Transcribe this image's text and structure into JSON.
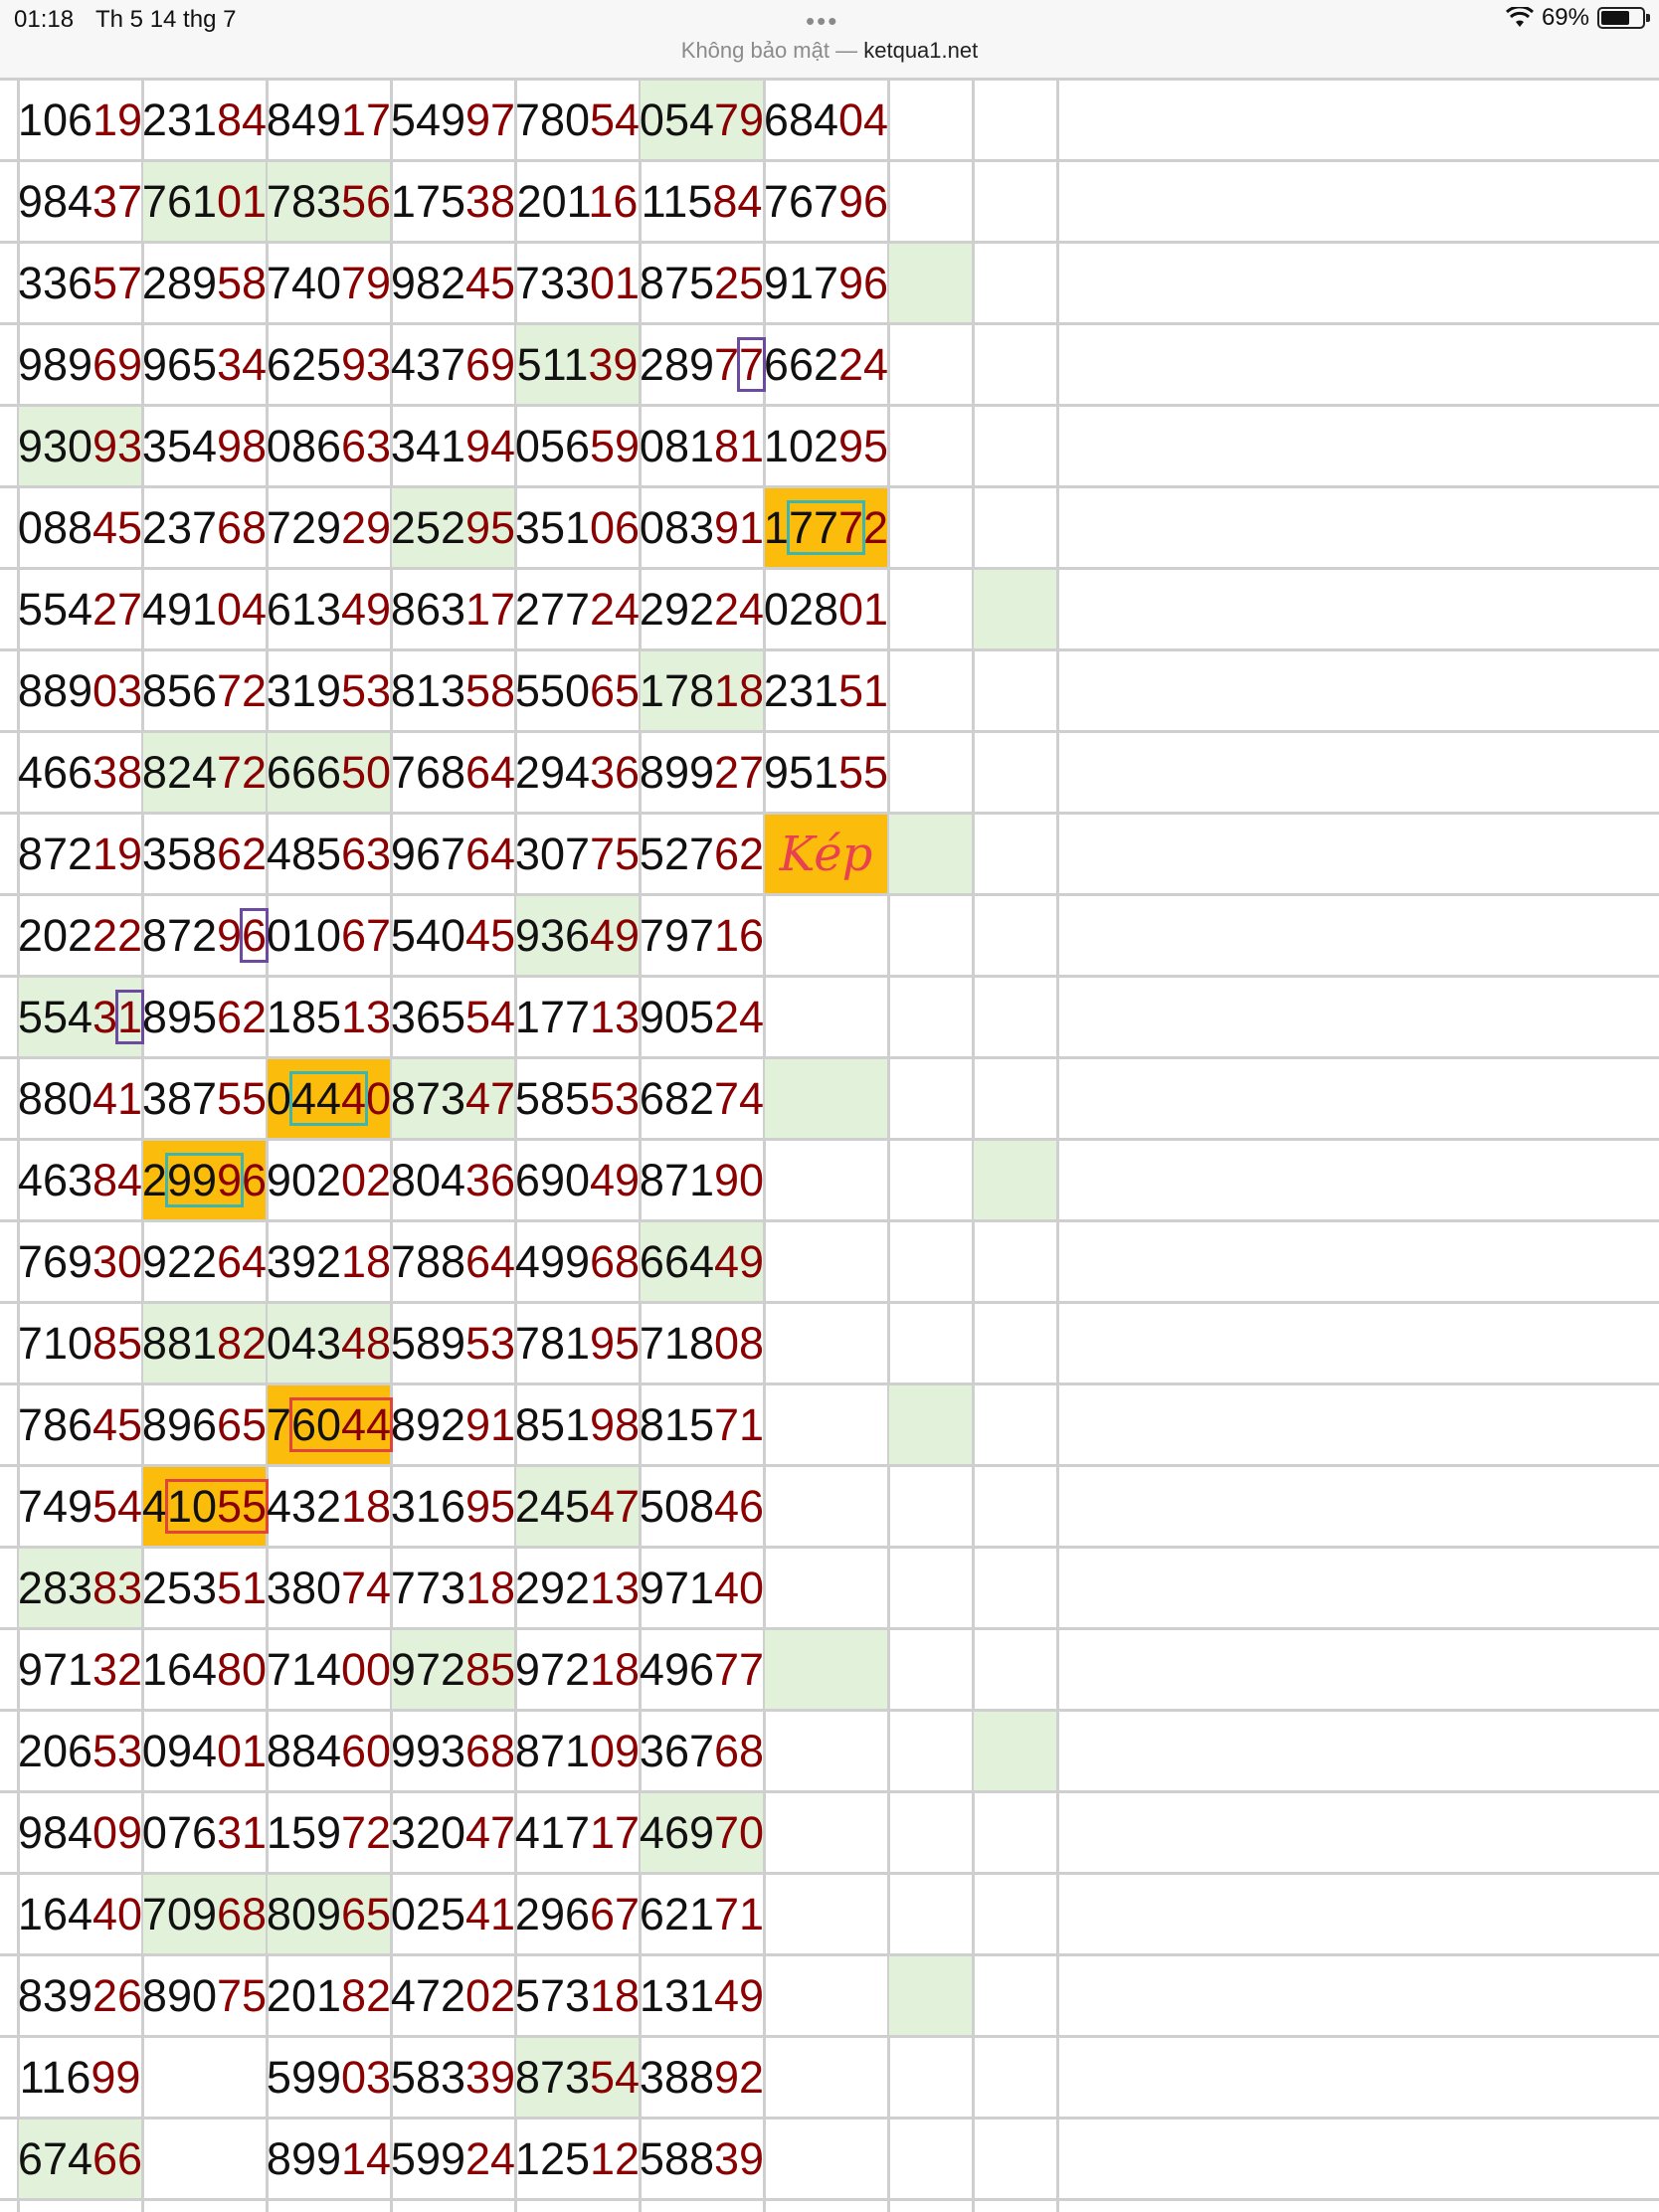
{
  "status": {
    "time": "01:18",
    "date": "Th 5 14 thg 7",
    "battery": "69%",
    "url_insecure": "Không bảo mật —",
    "url_domain": "ketqua1.net",
    "icons": [
      "wifi-icon",
      "battery-icon"
    ]
  },
  "colors": {
    "green_highlight": "#e2f1da",
    "orange_highlight": "#fcbc0b",
    "tail_digits": "#8b0000",
    "purple_box": "#6b4aa0",
    "teal_box": "#3fb5b0",
    "red_box": "#e1443a",
    "kep_text": "#e8414f"
  },
  "note_label": "Kép",
  "rows": [
    [
      "10619",
      "23184",
      "84917",
      "54997",
      "78054",
      "05479",
      "68404"
    ],
    [
      "98437",
      "76101",
      "78356",
      "17538",
      "20116",
      "11584",
      "76796"
    ],
    [
      "33657",
      "28958",
      "74079",
      "98245",
      "73301",
      "87525",
      "91796"
    ],
    [
      "98969",
      "96534",
      "62593",
      "43769",
      "51139",
      "28977",
      "66224"
    ],
    [
      "93093",
      "35498",
      "08663",
      "34194",
      "05659",
      "08181",
      "10295"
    ],
    [
      "08845",
      "23768",
      "72929",
      "25295",
      "35106",
      "08391",
      "17772"
    ],
    [
      "55427",
      "49104",
      "61349",
      "86317",
      "27724",
      "29224",
      "02801"
    ],
    [
      "88903",
      "85672",
      "31953",
      "81358",
      "55065",
      "17818",
      "23151"
    ],
    [
      "46638",
      "82472",
      "66650",
      "76864",
      "29436",
      "89927",
      "95155"
    ],
    [
      "87219",
      "35862",
      "48563",
      "96764",
      "30775",
      "52762",
      "Kép"
    ],
    [
      "20222",
      "87296",
      "01067",
      "54045",
      "93649",
      "79716",
      ""
    ],
    [
      "55431",
      "89562",
      "18513",
      "36554",
      "17713",
      "90524",
      ""
    ],
    [
      "88041",
      "38755",
      "04440",
      "87347",
      "58553",
      "68274",
      ""
    ],
    [
      "46384",
      "29996",
      "90202",
      "80436",
      "69049",
      "87190",
      ""
    ],
    [
      "76930",
      "92264",
      "39218",
      "78864",
      "49968",
      "66449",
      ""
    ],
    [
      "71085",
      "88182",
      "04348",
      "58953",
      "78195",
      "71808",
      ""
    ],
    [
      "78645",
      "89665",
      "76044",
      "89291",
      "85198",
      "81571",
      ""
    ],
    [
      "74954",
      "41055",
      "43218",
      "31695",
      "24547",
      "50846",
      ""
    ],
    [
      "28383",
      "25351",
      "38074",
      "77318",
      "29213",
      "97140",
      ""
    ],
    [
      "97132",
      "16480",
      "71400",
      "97285",
      "97218",
      "49677",
      ""
    ],
    [
      "20653",
      "09401",
      "88460",
      "99368",
      "87109",
      "36768",
      ""
    ],
    [
      "98409",
      "07631",
      "15972",
      "32047",
      "41717",
      "46970",
      ""
    ],
    [
      "16440",
      "70968",
      "80965",
      "02541",
      "29667",
      "62171",
      ""
    ],
    [
      "83926",
      "89075",
      "20182",
      "47202",
      "57318",
      "13149",
      ""
    ],
    [
      "11699",
      "",
      "59903",
      "58339",
      "87354",
      "38892",
      ""
    ],
    [
      "67466",
      "",
      "89914",
      "59924",
      "12512",
      "58839",
      ""
    ]
  ],
  "green_cells": [
    [
      0,
      5
    ],
    [
      1,
      1
    ],
    [
      1,
      2
    ],
    [
      2,
      7
    ],
    [
      3,
      4
    ],
    [
      4,
      0
    ],
    [
      4,
      10
    ],
    [
      5,
      3
    ],
    [
      6,
      8
    ],
    [
      7,
      5
    ],
    [
      8,
      1
    ],
    [
      8,
      2
    ],
    [
      9,
      7
    ],
    [
      10,
      4
    ],
    [
      11,
      0
    ],
    [
      11,
      10
    ],
    [
      12,
      3
    ],
    [
      12,
      6
    ],
    [
      13,
      8
    ],
    [
      14,
      5
    ],
    [
      15,
      1
    ],
    [
      15,
      2
    ],
    [
      16,
      7
    ],
    [
      17,
      4
    ],
    [
      18,
      0
    ],
    [
      18,
      10
    ],
    [
      19,
      3
    ],
    [
      19,
      6
    ],
    [
      20,
      8
    ],
    [
      21,
      5
    ],
    [
      22,
      1
    ],
    [
      22,
      2
    ],
    [
      23,
      7
    ],
    [
      24,
      4
    ],
    [
      25,
      0
    ],
    [
      25,
      10
    ]
  ],
  "orange_cells": [
    [
      5,
      6
    ],
    [
      9,
      6
    ],
    [
      12,
      2
    ],
    [
      13,
      1
    ],
    [
      16,
      2
    ],
    [
      17,
      1
    ]
  ],
  "boxes": [
    {
      "row": 3,
      "col": 5,
      "start": 4,
      "end": 5,
      "style": "purple"
    },
    {
      "row": 10,
      "col": 1,
      "start": 4,
      "end": 5,
      "style": "purple"
    },
    {
      "row": 11,
      "col": 0,
      "start": 4,
      "end": 5,
      "style": "purple"
    },
    {
      "row": 5,
      "col": 6,
      "start": 1,
      "end": 4,
      "style": "teal"
    },
    {
      "row": 12,
      "col": 2,
      "start": 1,
      "end": 4,
      "style": "teal"
    },
    {
      "row": 13,
      "col": 1,
      "start": 1,
      "end": 4,
      "style": "teal"
    },
    {
      "row": 16,
      "col": 2,
      "start": 1,
      "end": 5,
      "style": "red"
    },
    {
      "row": 17,
      "col": 1,
      "start": 1,
      "end": 5,
      "style": "red"
    }
  ]
}
